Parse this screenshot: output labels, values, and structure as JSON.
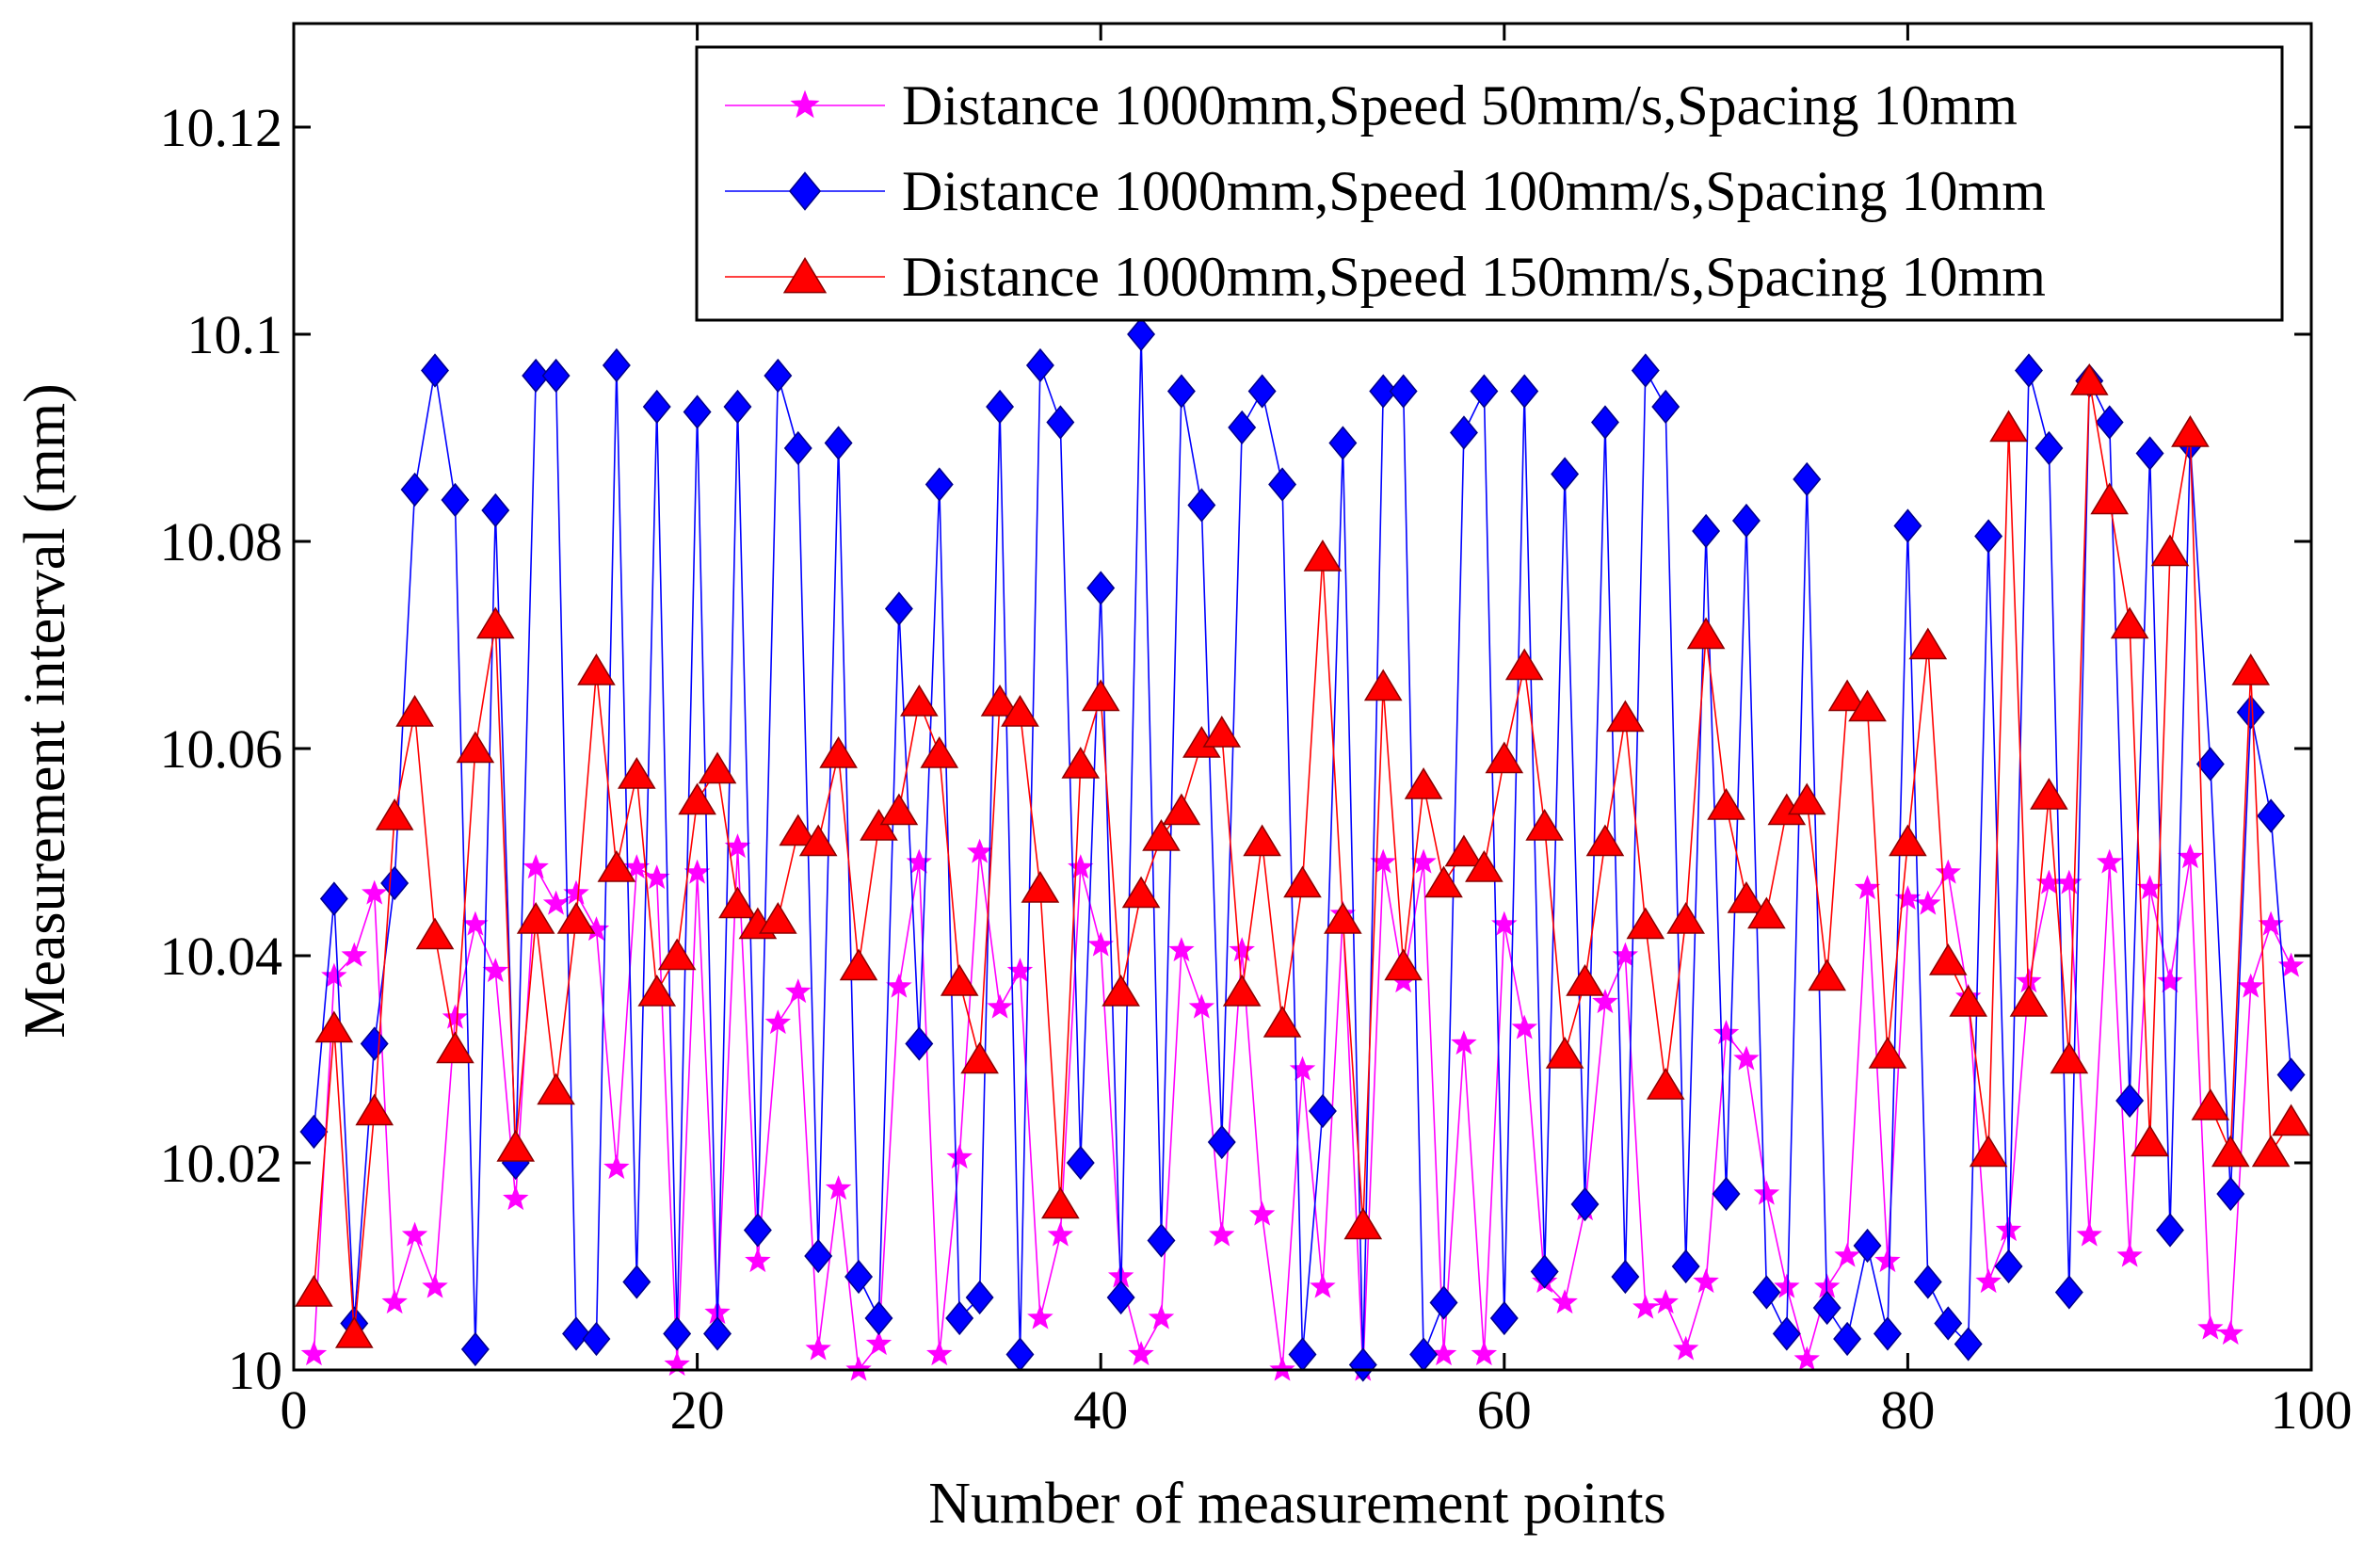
{
  "chart_data": {
    "type": "line",
    "title": "",
    "xlabel": "Number of measurement points",
    "ylabel": "Measurement interval (mm)",
    "xlim": [
      0,
      100
    ],
    "ylim": [
      10,
      10.13
    ],
    "xticks": [
      0,
      20,
      40,
      60,
      80,
      100
    ],
    "xtick_labels": [
      "0",
      "20",
      "40",
      "60",
      "80",
      "100"
    ],
    "yticks": [
      10,
      10.02,
      10.04,
      10.06,
      10.08,
      10.1,
      10.12
    ],
    "ytick_labels": [
      "10",
      "10.02",
      "10.04",
      "10.06",
      "10.08",
      "10.1",
      "10.12"
    ],
    "grid": false,
    "legend_position": "top-right",
    "x": [
      1,
      2,
      3,
      4,
      5,
      6,
      7,
      8,
      9,
      10,
      11,
      12,
      13,
      14,
      15,
      16,
      17,
      18,
      19,
      20,
      21,
      22,
      23,
      24,
      25,
      26,
      27,
      28,
      29,
      30,
      31,
      32,
      33,
      34,
      35,
      36,
      37,
      38,
      39,
      40,
      41,
      42,
      43,
      44,
      45,
      46,
      47,
      48,
      49,
      50,
      51,
      52,
      53,
      54,
      55,
      56,
      57,
      58,
      59,
      60,
      61,
      62,
      63,
      64,
      65,
      66,
      67,
      68,
      69,
      70,
      71,
      72,
      73,
      74,
      75,
      76,
      77,
      78,
      79,
      80,
      81,
      82,
      83,
      84,
      85,
      86,
      87,
      88,
      89,
      90,
      91,
      92,
      93,
      94,
      95,
      96,
      97,
      98,
      99
    ],
    "series": [
      {
        "name": "Distance 1000mm,Speed 50mm/s,Spacing 10mm",
        "color": "#ff00ff",
        "marker": "star",
        "values": [
          10.0015,
          10.038,
          10.04,
          10.046,
          10.0065,
          10.013,
          10.008,
          10.034,
          10.043,
          10.0385,
          10.0165,
          10.0485,
          10.045,
          10.046,
          10.0425,
          10.0195,
          10.0485,
          10.0475,
          10.0005,
          10.048,
          10.0055,
          10.0505,
          10.0105,
          10.0335,
          10.0365,
          10.002,
          10.0175,
          10.0,
          10.0025,
          10.037,
          10.049,
          10.0015,
          10.0205,
          10.05,
          10.035,
          10.0385,
          10.005,
          10.013,
          10.0485,
          10.041,
          10.009,
          10.0015,
          10.005,
          10.0405,
          10.035,
          10.013,
          10.0405,
          10.015,
          10.0,
          10.029,
          10.008,
          10.044,
          10.0,
          10.049,
          10.0375,
          10.049,
          10.0015,
          10.0315,
          10.0015,
          10.043,
          10.033,
          10.0085,
          10.0065,
          10.0155,
          10.0355,
          10.04,
          10.006,
          10.0065,
          10.002,
          10.0085,
          10.0325,
          10.03,
          10.017,
          10.008,
          10.001,
          10.008,
          10.011,
          10.0465,
          10.0105,
          10.0455,
          10.045,
          10.048,
          10.036,
          10.0085,
          10.0135,
          10.0375,
          10.047,
          10.047,
          10.013,
          10.049,
          10.011,
          10.0465,
          10.0375,
          10.0495,
          10.004,
          10.0035,
          10.037,
          10.043,
          10.039
        ]
      },
      {
        "name": "Distance 1000mm,Speed 100mm/s,Spacing 10mm",
        "color": "#0000ff",
        "marker": "diamond",
        "values": [
          10.023,
          10.0455,
          10.0045,
          10.0315,
          10.047,
          10.085,
          10.0965,
          10.084,
          10.002,
          10.083,
          10.02,
          10.096,
          10.096,
          10.0035,
          10.003,
          10.097,
          10.0085,
          10.093,
          10.0035,
          10.0925,
          10.0035,
          10.093,
          10.0135,
          10.096,
          10.089,
          10.011,
          10.0895,
          10.009,
          10.005,
          10.0735,
          10.0315,
          10.0855,
          10.005,
          10.007,
          10.093,
          10.0015,
          10.097,
          10.0915,
          10.02,
          10.0755,
          10.007,
          10.1,
          10.0125,
          10.0945,
          10.0835,
          10.022,
          10.091,
          10.0945,
          10.0855,
          10.0015,
          10.025,
          10.0895,
          10.0005,
          10.0945,
          10.0945,
          10.0015,
          10.0065,
          10.0905,
          10.0945,
          10.005,
          10.0945,
          10.0095,
          10.0865,
          10.016,
          10.0915,
          10.009,
          10.0965,
          10.093,
          10.01,
          10.081,
          10.017,
          10.082,
          10.0075,
          10.0035,
          10.086,
          10.006,
          10.003,
          10.012,
          10.0035,
          10.0815,
          10.0085,
          10.0045,
          10.0025,
          10.0805,
          10.01,
          10.0965,
          10.089,
          10.0075,
          10.0955,
          10.0915,
          10.026,
          10.0885,
          10.0135,
          10.0895,
          10.0585,
          10.017,
          10.0635,
          10.0535,
          10.0285
        ]
      },
      {
        "name": "Distance 1000mm,Speed 150mm/s,Spacing 10mm",
        "color": "#ff0000",
        "marker": "triangle",
        "values": [
          10.0075,
          10.033,
          10.0035,
          10.025,
          10.0535,
          10.0635,
          10.042,
          10.031,
          10.06,
          10.072,
          10.0215,
          10.0435,
          10.027,
          10.0435,
          10.0675,
          10.0485,
          10.0575,
          10.0365,
          10.04,
          10.055,
          10.058,
          10.045,
          10.043,
          10.0435,
          10.052,
          10.051,
          10.0595,
          10.039,
          10.0525,
          10.054,
          10.0645,
          10.0595,
          10.0375,
          10.03,
          10.0645,
          10.0635,
          10.0465,
          10.016,
          10.0585,
          10.065,
          10.0365,
          10.046,
          10.0515,
          10.054,
          10.0605,
          10.0615,
          10.0365,
          10.051,
          10.0335,
          10.047,
          10.0785,
          10.0435,
          10.014,
          10.066,
          10.039,
          10.0565,
          10.047,
          10.05,
          10.0485,
          10.059,
          10.068,
          10.0525,
          10.0305,
          10.0375,
          10.051,
          10.063,
          10.043,
          10.0275,
          10.0435,
          10.071,
          10.0545,
          10.0455,
          10.044,
          10.054,
          10.055,
          10.038,
          10.065,
          10.064,
          10.0305,
          10.051,
          10.07,
          10.0395,
          10.0355,
          10.021,
          10.091,
          10.0355,
          10.0555,
          10.03,
          10.0955,
          10.084,
          10.072,
          10.022,
          10.079,
          10.0905,
          10.0255,
          10.021,
          10.0675,
          10.021,
          10.024
        ]
      }
    ]
  }
}
